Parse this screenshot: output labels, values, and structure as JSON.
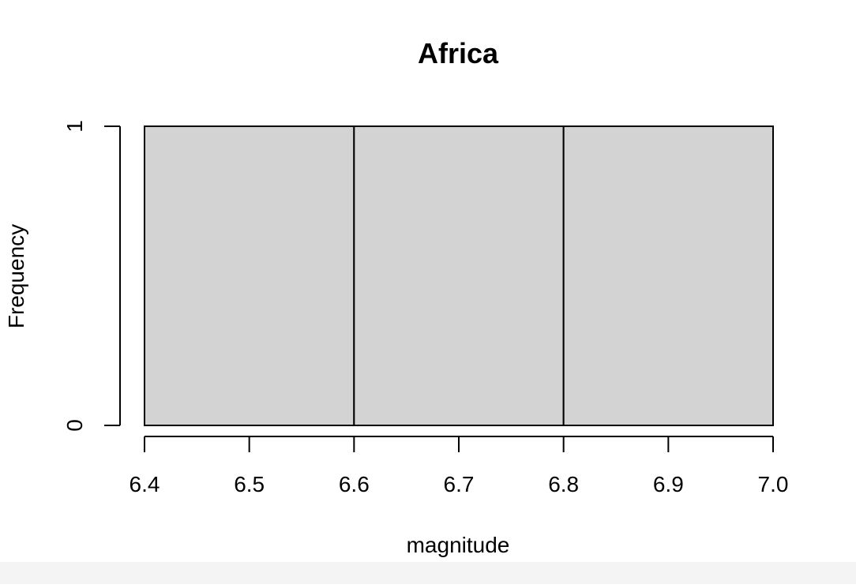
{
  "chart_data": {
    "type": "bar",
    "title": "Africa",
    "xlabel": "magnitude",
    "ylabel": "Frequency",
    "bins": [
      {
        "x0": 6.4,
        "x1": 6.6,
        "count": 1
      },
      {
        "x0": 6.6,
        "x1": 6.8,
        "count": 1
      },
      {
        "x0": 6.8,
        "x1": 7.0,
        "count": 1
      }
    ],
    "xlim": [
      6.4,
      7.0
    ],
    "ylim": [
      0,
      1
    ],
    "x_ticks": [
      6.4,
      6.5,
      6.6,
      6.7,
      6.8,
      6.9,
      7.0
    ],
    "x_tick_labels": [
      "6.4",
      "6.5",
      "6.6",
      "6.7",
      "6.8",
      "6.9",
      "7.0"
    ],
    "y_ticks": [
      0,
      1
    ],
    "y_tick_labels": [
      "0",
      "1"
    ],
    "grid": false,
    "colors": {
      "bar_fill": "#d3d3d3",
      "bar_stroke": "#000000",
      "axis": "#000000"
    }
  }
}
